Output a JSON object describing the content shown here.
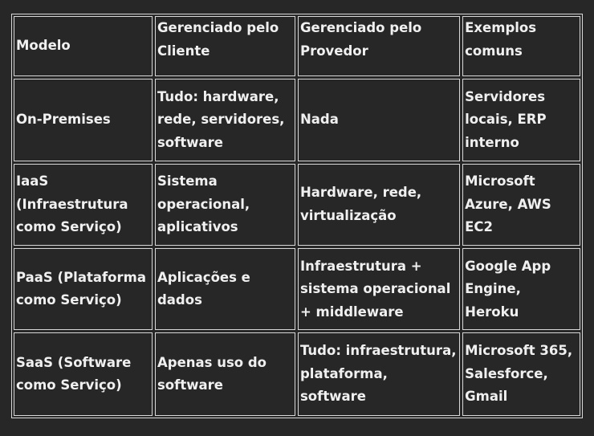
{
  "table": {
    "headers": [
      "Modelo",
      "Gerenciado pelo Cliente",
      "Gerenciado pelo Provedor",
      "Exemplos comuns"
    ],
    "rows": [
      [
        "On-Premises",
        "Tudo: hardware, rede, servidores, software",
        "Nada",
        "Servidores locais, ERP interno"
      ],
      [
        "IaaS (Infraestrutura como Serviço)",
        "Sistema operacional, aplicativos",
        "Hardware, rede, virtualização",
        "Microsoft Azure, AWS EC2"
      ],
      [
        "PaaS (Plataforma como Serviço)",
        "Aplicações e dados",
        "Infraestrutura + sistema operacional + middleware",
        "Google App Engine, Heroku"
      ],
      [
        "SaaS (Software como Serviço)",
        "Apenas uso do software",
        "Tudo: infraestrutura, plataforma, software",
        "Microsoft 365, Salesforce, Gmail"
      ]
    ]
  }
}
